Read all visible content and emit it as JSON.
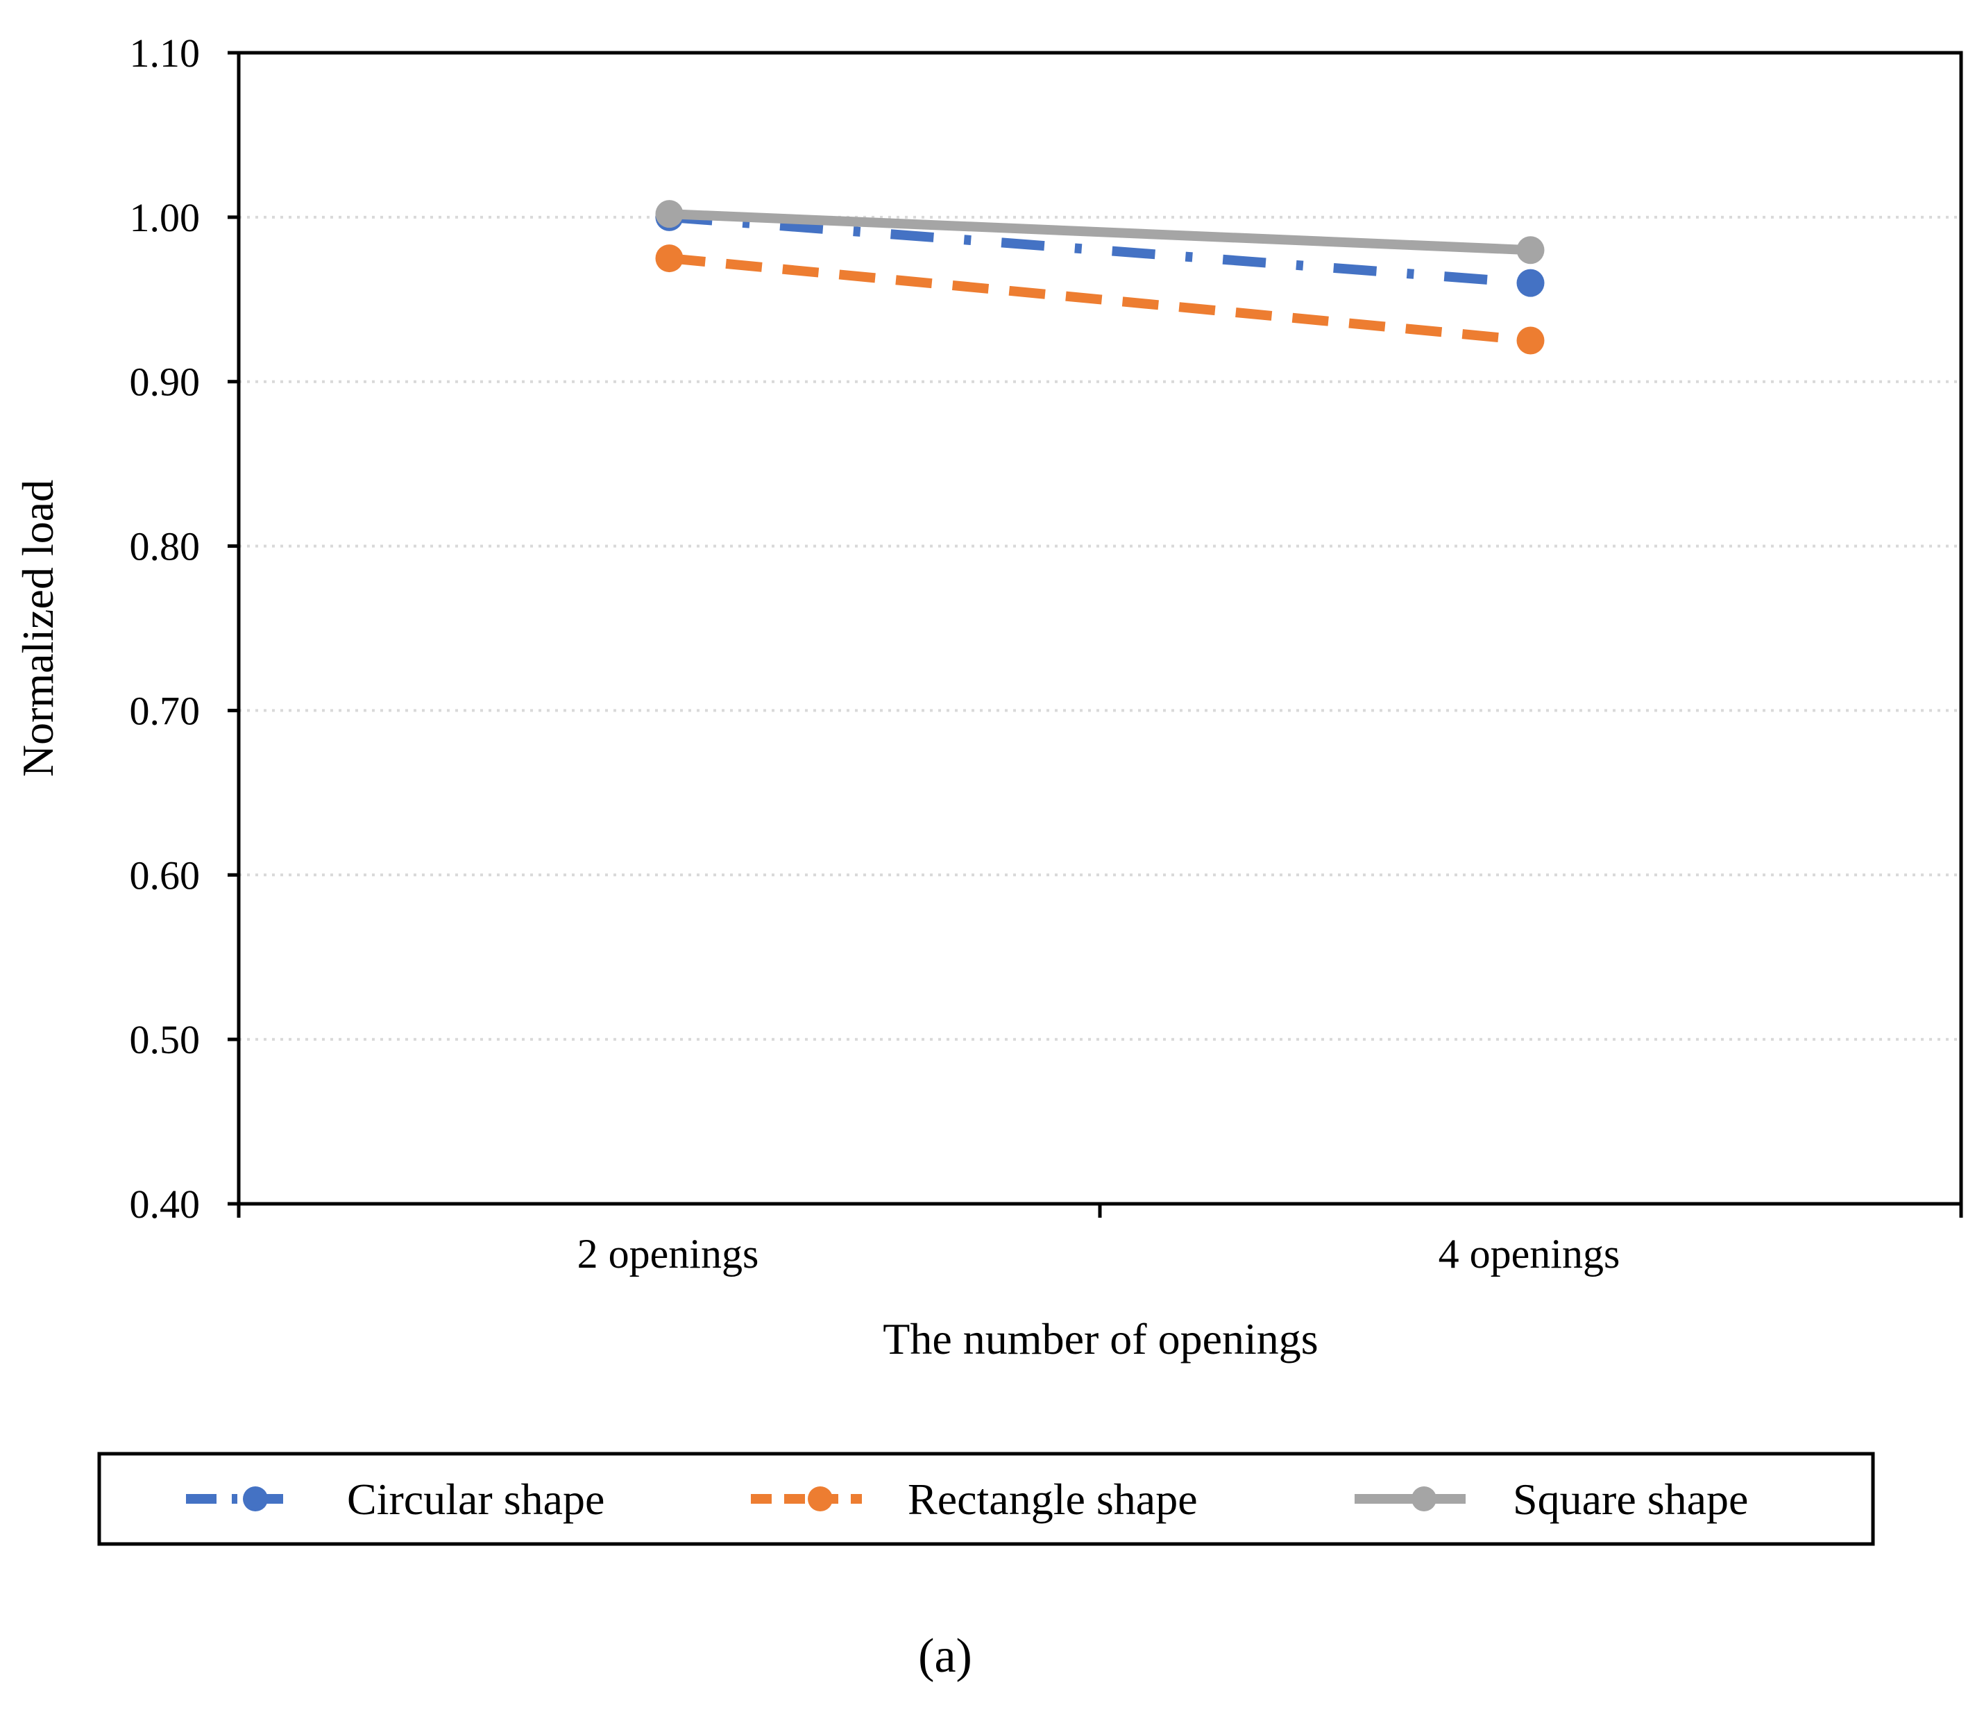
{
  "chart_data": {
    "type": "line",
    "categories": [
      "2 openings",
      "4 openings"
    ],
    "series": [
      {
        "name": "Circular shape",
        "values": [
          1.0,
          0.96
        ],
        "color": "#4472C4",
        "style": "dash-dot"
      },
      {
        "name": "Rectangle shape",
        "values": [
          0.975,
          0.925
        ],
        "color": "#ED7D31",
        "style": "dash"
      },
      {
        "name": "Square shape",
        "values": [
          1.002,
          0.98
        ],
        "color": "#A5A5A5",
        "style": "solid"
      }
    ],
    "ylim": [
      0.4,
      1.1
    ],
    "yticks": [
      "0.40",
      "0.50",
      "0.60",
      "0.70",
      "0.80",
      "0.90",
      "1.00",
      "1.10"
    ],
    "ylabel": "Normalized load",
    "xlabel": "The number of openings",
    "grid": true,
    "legend_position": "bottom",
    "caption": "(a)"
  }
}
